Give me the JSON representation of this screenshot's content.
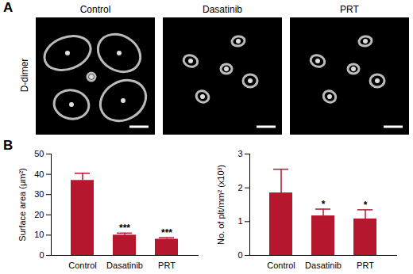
{
  "figure": {
    "panel_a": {
      "label": "A",
      "columns": [
        "Control",
        "Dasatinib",
        "PRT"
      ],
      "row_label": "D-dimer"
    },
    "panel_b": {
      "label": "B"
    }
  },
  "chart_data": [
    {
      "type": "bar",
      "categories": [
        "Control",
        "Dasatinib",
        "PRT"
      ],
      "values": [
        37,
        10,
        8
      ],
      "errors": [
        3.5,
        1,
        0.7
      ],
      "significance": [
        null,
        "***",
        "***"
      ],
      "y_label": "Surface area (μm²)",
      "ylim": [
        0,
        50
      ],
      "yticks": [
        0,
        10,
        20,
        30,
        40,
        50
      ],
      "color": "#b5172e"
    },
    {
      "type": "bar",
      "categories": [
        "Control",
        "Dasatinib",
        "PRT"
      ],
      "values": [
        1.85,
        1.17,
        1.08
      ],
      "errors": [
        0.7,
        0.2,
        0.27
      ],
      "significance": [
        null,
        "*",
        "*"
      ],
      "y_label": "No. of plt/mm² (x10³)",
      "ylim": [
        0,
        3
      ],
      "yticks": [
        0,
        1,
        2,
        3
      ],
      "color": "#b5172e"
    }
  ]
}
